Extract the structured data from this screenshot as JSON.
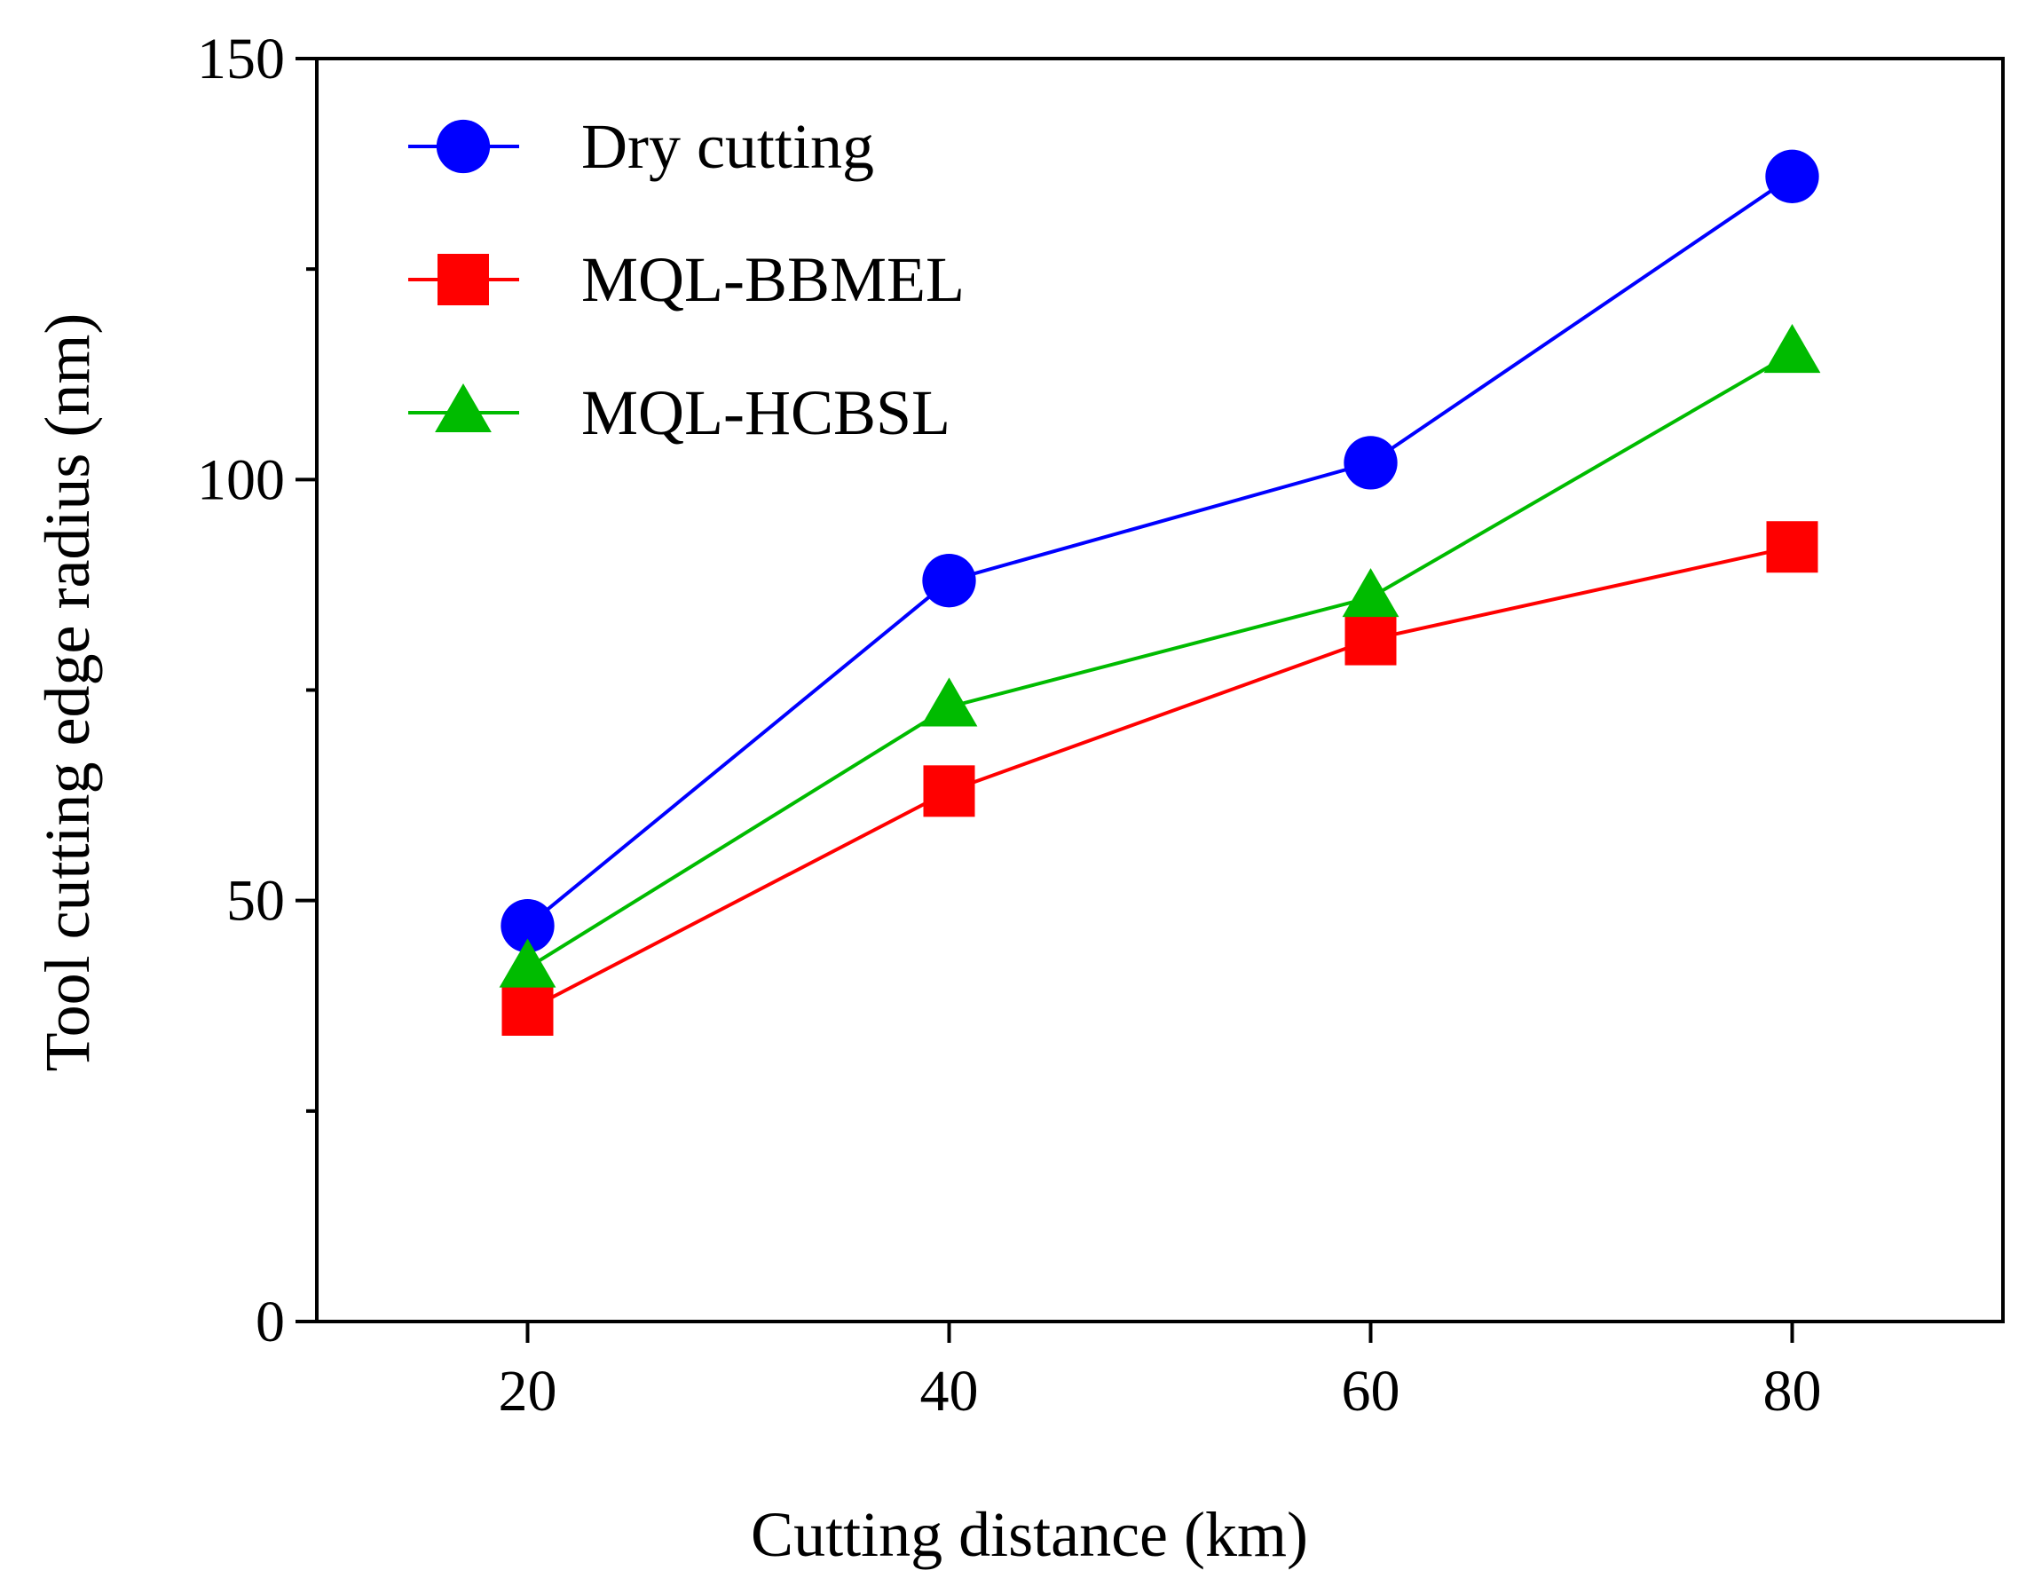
{
  "chart_data": {
    "type": "line",
    "title": "",
    "xlabel": "Cutting distance (km)",
    "ylabel": "Tool cutting edge radius (nm)",
    "x": [
      20,
      40,
      60,
      80
    ],
    "xlim": [
      10,
      90
    ],
    "ylim": [
      0,
      150
    ],
    "xticks": [
      20,
      40,
      60,
      80
    ],
    "yticks": [
      0,
      50,
      100,
      150
    ],
    "yminor_ticks": [
      25,
      75,
      125
    ],
    "grid": false,
    "legend_position": "top-left",
    "series": [
      {
        "name": "Dry cutting",
        "marker": "circle",
        "color": "#0000ff",
        "values": [
          47,
          88,
          102,
          136
        ]
      },
      {
        "name": "MQL-BBMEL",
        "marker": "square",
        "color": "#ff0000",
        "values": [
          37,
          63,
          81,
          92
        ]
      },
      {
        "name": "MQL-HCBSL",
        "marker": "triangle",
        "color": "#00bb00",
        "values": [
          42,
          73,
          86,
          115
        ]
      }
    ]
  }
}
